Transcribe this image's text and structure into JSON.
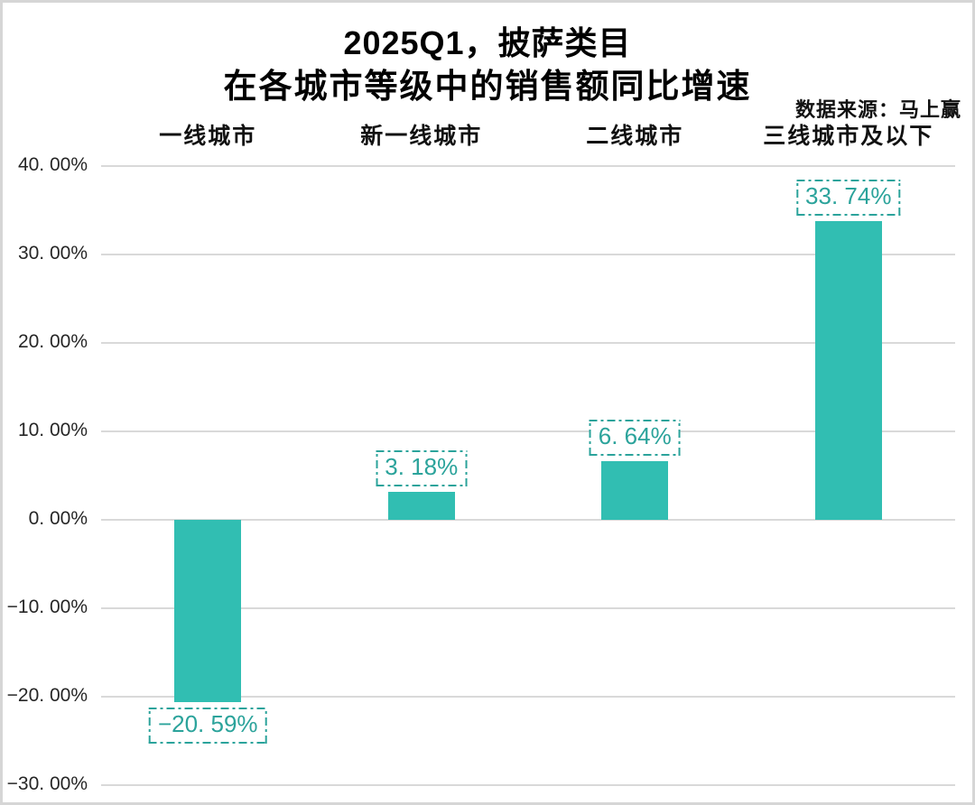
{
  "chart_data": {
    "type": "bar",
    "title_line1": "2025Q1，披萨类目",
    "title_line2": "在各城市等级中的销售额同比增速",
    "source_note": "数据来源：马上赢",
    "categories": [
      "一线城市",
      "新一线城市",
      "二线城市",
      "三线城市及以下"
    ],
    "values": [
      -20.59,
      3.18,
      6.64,
      33.74
    ],
    "value_labels": [
      "−20. 59%",
      "3. 18%",
      "6. 64%",
      "33. 74%"
    ],
    "xlabel": "",
    "ylabel": "",
    "ylim": [
      -30,
      40
    ],
    "y_tick_step": 10,
    "y_tick_labels": [
      "40. 00%",
      "30. 00%",
      "20. 00%",
      "10. 00%",
      "0. 00%",
      "−10. 00%",
      "−20. 00%",
      "−30. 00%"
    ],
    "grid": true,
    "legend": false,
    "colors": {
      "bar": "#31beb2",
      "value_label": "#2ba39b",
      "gridline": "#d9d9d9",
      "axis_text": "#262626",
      "title": "#000000",
      "border": "#d6d6d6"
    }
  }
}
